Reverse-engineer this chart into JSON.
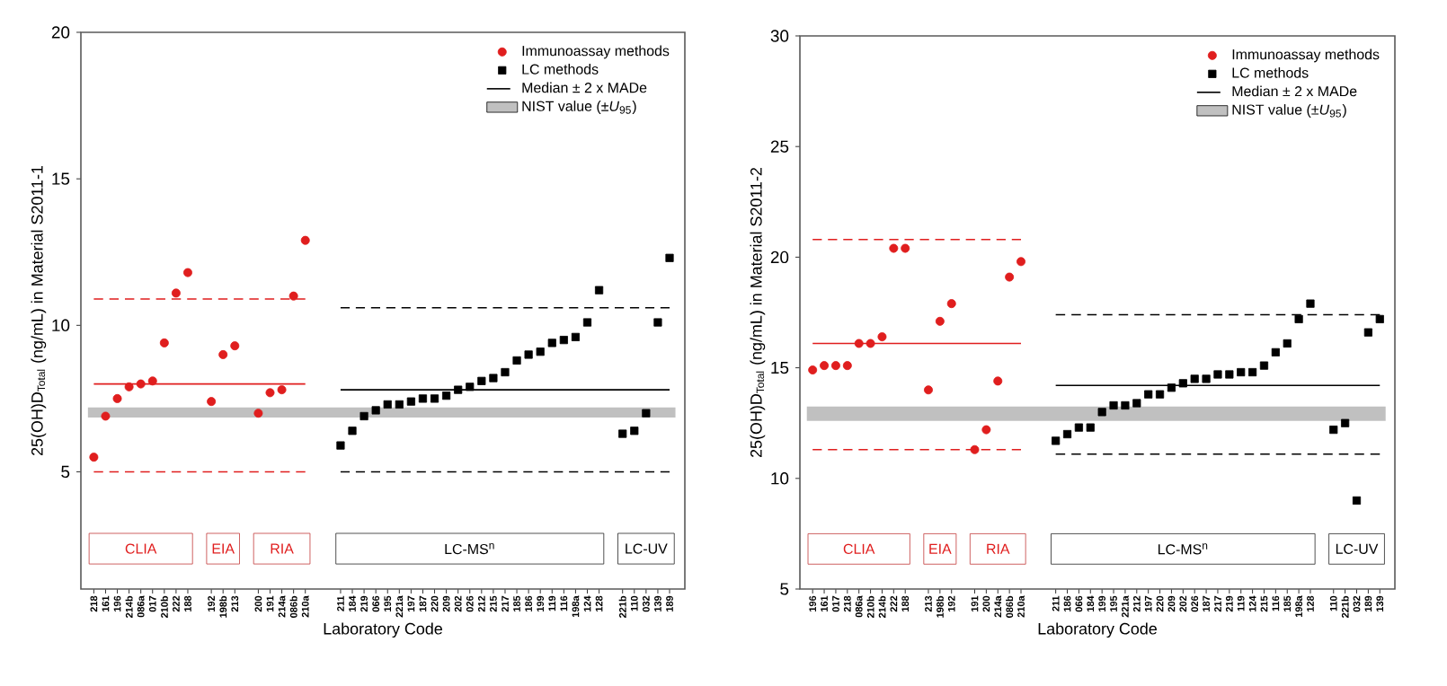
{
  "chart_data": [
    {
      "type": "scatter",
      "ylabel": "25(OH)D$_{Total}$ (ng/mL) in Material S2011-1",
      "xlabel": "Laboratory Code",
      "legend": "top right",
      "grid": false,
      "ylim": [
        1,
        20
      ],
      "yticks": [
        5,
        10,
        15,
        20
      ],
      "categories": [
        "218",
        "161",
        "196",
        "214b",
        "086a",
        "017",
        "210b",
        "222",
        "188",
        null,
        "192",
        "198b",
        "213",
        null,
        "200",
        "191",
        "214a",
        "086b",
        "210a",
        null,
        null,
        "211",
        "184",
        "219",
        "066",
        "195",
        "221a",
        "197",
        "187",
        "220",
        "209",
        "202",
        "026",
        "212",
        "215",
        "217",
        "185",
        "186",
        "199",
        "119",
        "116",
        "198a",
        "124",
        "128",
        null,
        "221b",
        "110",
        "032",
        "139",
        "189"
      ],
      "series": [
        {
          "name": "Immunoassay methods",
          "type": "scatter",
          "marker": "circle",
          "color": "#e01e1e",
          "values": [
            5.5,
            6.9,
            7.5,
            7.9,
            8.0,
            8.1,
            9.4,
            11.1,
            11.8,
            null,
            7.4,
            9.0,
            9.3,
            null,
            7.0,
            7.7,
            7.8,
            11.0,
            12.9,
            null,
            null,
            null,
            null,
            null,
            null,
            null,
            null,
            null,
            null,
            null,
            null,
            null,
            null,
            null,
            null,
            null,
            null,
            null,
            null,
            null,
            null,
            null,
            null,
            null,
            null,
            null,
            null,
            null,
            null,
            null
          ]
        },
        {
          "name": "LC methods",
          "type": "scatter",
          "marker": "square",
          "color": "#000000",
          "values": [
            null,
            null,
            null,
            null,
            null,
            null,
            null,
            null,
            null,
            null,
            null,
            null,
            null,
            null,
            null,
            null,
            null,
            null,
            null,
            null,
            null,
            5.9,
            6.4,
            6.9,
            7.1,
            7.3,
            7.3,
            7.4,
            7.5,
            7.5,
            7.6,
            7.8,
            7.9,
            8.1,
            8.2,
            8.4,
            8.8,
            9.0,
            9.1,
            9.4,
            9.5,
            9.6,
            10.1,
            11.2,
            null,
            6.3,
            6.4,
            7.0,
            10.1,
            12.3
          ]
        },
        {
          "type": "line",
          "line_style": "solid",
          "color": "#e01e1e",
          "values": [
            8.0,
            8.0,
            8.0,
            8.0,
            8.0,
            8.0,
            8.0,
            8.0,
            8.0,
            8.0,
            8.0,
            8.0,
            8.0,
            8.0,
            8.0,
            8.0,
            8.0,
            8.0,
            8.0,
            null,
            null,
            null,
            null,
            null,
            null,
            null,
            null,
            null,
            null,
            null,
            null,
            null,
            null,
            null,
            null,
            null,
            null,
            null,
            null,
            null,
            null,
            null,
            null,
            null,
            null,
            null,
            null,
            null,
            null,
            null
          ]
        },
        {
          "type": "line",
          "line_style": "dashed",
          "color": "#e01e1e",
          "values": [
            10.9,
            10.9,
            10.9,
            10.9,
            10.9,
            10.9,
            10.9,
            10.9,
            10.9,
            10.9,
            10.9,
            10.9,
            10.9,
            10.9,
            10.9,
            10.9,
            10.9,
            10.9,
            10.9,
            null,
            null,
            null,
            null,
            null,
            null,
            null,
            null,
            null,
            null,
            null,
            null,
            null,
            null,
            null,
            null,
            null,
            null,
            null,
            null,
            null,
            null,
            null,
            null,
            null,
            null,
            null,
            null,
            null,
            null,
            null
          ]
        },
        {
          "type": "line",
          "line_style": "dashed",
          "color": "#e01e1e",
          "values": [
            5.0,
            5.0,
            5.0,
            5.0,
            5.0,
            5.0,
            5.0,
            5.0,
            5.0,
            5.0,
            5.0,
            5.0,
            5.0,
            5.0,
            5.0,
            5.0,
            5.0,
            5.0,
            5.0,
            null,
            null,
            null,
            null,
            null,
            null,
            null,
            null,
            null,
            null,
            null,
            null,
            null,
            null,
            null,
            null,
            null,
            null,
            null,
            null,
            null,
            null,
            null,
            null,
            null,
            null,
            null,
            null,
            null,
            null,
            null
          ]
        },
        {
          "name": "Median ± 2 x MADe",
          "type": "line",
          "line_style": "solid",
          "color": "#000000",
          "values": [
            null,
            null,
            null,
            null,
            null,
            null,
            null,
            null,
            null,
            null,
            null,
            null,
            null,
            null,
            null,
            null,
            null,
            null,
            null,
            null,
            null,
            7.8,
            7.8,
            7.8,
            7.8,
            7.8,
            7.8,
            7.8,
            7.8,
            7.8,
            7.8,
            7.8,
            7.8,
            7.8,
            7.8,
            7.8,
            7.8,
            7.8,
            7.8,
            7.8,
            7.8,
            7.8,
            7.8,
            7.8,
            7.8,
            7.8,
            7.8,
            7.8,
            7.8,
            7.8
          ]
        },
        {
          "type": "line",
          "line_style": "dashed",
          "color": "#000000",
          "values": [
            null,
            null,
            null,
            null,
            null,
            null,
            null,
            null,
            null,
            null,
            null,
            null,
            null,
            null,
            null,
            null,
            null,
            null,
            null,
            null,
            null,
            10.6,
            10.6,
            10.6,
            10.6,
            10.6,
            10.6,
            10.6,
            10.6,
            10.6,
            10.6,
            10.6,
            10.6,
            10.6,
            10.6,
            10.6,
            10.6,
            10.6,
            10.6,
            10.6,
            10.6,
            10.6,
            10.6,
            10.6,
            10.6,
            10.6,
            10.6,
            10.6,
            10.6,
            10.6
          ]
        },
        {
          "type": "line",
          "line_style": "dashed",
          "color": "#000000",
          "values": [
            null,
            null,
            null,
            null,
            null,
            null,
            null,
            null,
            null,
            null,
            null,
            null,
            null,
            null,
            null,
            null,
            null,
            null,
            null,
            null,
            null,
            5.0,
            5.0,
            5.0,
            5.0,
            5.0,
            5.0,
            5.0,
            5.0,
            5.0,
            5.0,
            5.0,
            5.0,
            5.0,
            5.0,
            5.0,
            5.0,
            5.0,
            5.0,
            5.0,
            5.0,
            5.0,
            5.0,
            5.0,
            5.0,
            5.0,
            5.0,
            5.0,
            5.0,
            5.0
          ]
        }
      ],
      "bands": [
        {
          "axis": "y",
          "from": 6.85,
          "to": 7.2,
          "label": "NIST value (±*U*$_{95}$)",
          "color": "#c0c0c0"
        }
      ],
      "annotations": [
        "CLIA",
        "EIA",
        "RIA",
        "LC-MS$^{n}$",
        "LC-UV"
      ]
    },
    {
      "type": "scatter",
      "ylabel": "25(OH)D$_{Total}$ (ng/mL) in Material S2011-2",
      "xlabel": "Laboratory Code",
      "legend": "top right",
      "grid": false,
      "ylim": [
        5,
        30
      ],
      "yticks": [
        5,
        10,
        15,
        20,
        25,
        30
      ],
      "categories": [
        "196",
        "161",
        "017",
        "218",
        "086a",
        "210b",
        "214b",
        "222",
        "188",
        null,
        "213",
        "198b",
        "192",
        null,
        "191",
        "200",
        "214a",
        "086b",
        "210a",
        null,
        null,
        "211",
        "186",
        "066",
        "184",
        "199",
        "195",
        "221a",
        "212",
        "197",
        "220",
        "209",
        "202",
        "026",
        "187",
        "217",
        "219",
        "119",
        "124",
        "215",
        "116",
        "185",
        "198a",
        "128",
        null,
        "110",
        "221b",
        "032",
        "189",
        "139"
      ],
      "series": [
        {
          "name": "Immunoassay methods",
          "type": "scatter",
          "marker": "circle",
          "color": "#e01e1e",
          "values": [
            14.9,
            15.1,
            15.1,
            15.1,
            16.1,
            16.1,
            16.4,
            20.4,
            20.4,
            null,
            14.0,
            17.1,
            17.9,
            null,
            11.3,
            12.2,
            14.4,
            19.1,
            19.8,
            null,
            null,
            null,
            null,
            null,
            null,
            null,
            null,
            null,
            null,
            null,
            null,
            null,
            null,
            null,
            null,
            null,
            null,
            null,
            null,
            null,
            null,
            null,
            null,
            null,
            null,
            null,
            null,
            null,
            null,
            null
          ]
        },
        {
          "name": "LC methods",
          "type": "scatter",
          "marker": "square",
          "color": "#000000",
          "values": [
            null,
            null,
            null,
            null,
            null,
            null,
            null,
            null,
            null,
            null,
            null,
            null,
            null,
            null,
            null,
            null,
            null,
            null,
            null,
            null,
            null,
            11.7,
            12.0,
            12.3,
            12.3,
            13.0,
            13.3,
            13.3,
            13.4,
            13.8,
            13.8,
            14.1,
            14.3,
            14.5,
            14.5,
            14.7,
            14.7,
            14.8,
            14.8,
            15.1,
            15.7,
            16.1,
            17.2,
            17.9,
            null,
            12.2,
            12.5,
            9.0,
            16.6,
            17.2
          ]
        },
        {
          "type": "line",
          "line_style": "solid",
          "color": "#e01e1e",
          "values": [
            16.1,
            16.1,
            16.1,
            16.1,
            16.1,
            16.1,
            16.1,
            16.1,
            16.1,
            16.1,
            16.1,
            16.1,
            16.1,
            16.1,
            16.1,
            16.1,
            16.1,
            16.1,
            16.1,
            null,
            null,
            null,
            null,
            null,
            null,
            null,
            null,
            null,
            null,
            null,
            null,
            null,
            null,
            null,
            null,
            null,
            null,
            null,
            null,
            null,
            null,
            null,
            null,
            null,
            null,
            null,
            null,
            null,
            null,
            null
          ]
        },
        {
          "type": "line",
          "line_style": "dashed",
          "color": "#e01e1e",
          "values": [
            20.8,
            20.8,
            20.8,
            20.8,
            20.8,
            20.8,
            20.8,
            20.8,
            20.8,
            20.8,
            20.8,
            20.8,
            20.8,
            20.8,
            20.8,
            20.8,
            20.8,
            20.8,
            20.8,
            null,
            null,
            null,
            null,
            null,
            null,
            null,
            null,
            null,
            null,
            null,
            null,
            null,
            null,
            null,
            null,
            null,
            null,
            null,
            null,
            null,
            null,
            null,
            null,
            null,
            null,
            null,
            null,
            null,
            null,
            null
          ]
        },
        {
          "type": "line",
          "line_style": "dashed",
          "color": "#e01e1e",
          "values": [
            11.3,
            11.3,
            11.3,
            11.3,
            11.3,
            11.3,
            11.3,
            11.3,
            11.3,
            11.3,
            11.3,
            11.3,
            11.3,
            11.3,
            11.3,
            11.3,
            11.3,
            11.3,
            11.3,
            null,
            null,
            null,
            null,
            null,
            null,
            null,
            null,
            null,
            null,
            null,
            null,
            null,
            null,
            null,
            null,
            null,
            null,
            null,
            null,
            null,
            null,
            null,
            null,
            null,
            null,
            null,
            null,
            null,
            null,
            null
          ]
        },
        {
          "name": "Median ± 2 x MADe",
          "type": "line",
          "line_style": "solid",
          "color": "#000000",
          "values": [
            null,
            null,
            null,
            null,
            null,
            null,
            null,
            null,
            null,
            null,
            null,
            null,
            null,
            null,
            null,
            null,
            null,
            null,
            null,
            null,
            null,
            14.2,
            14.2,
            14.2,
            14.2,
            14.2,
            14.2,
            14.2,
            14.2,
            14.2,
            14.2,
            14.2,
            14.2,
            14.2,
            14.2,
            14.2,
            14.2,
            14.2,
            14.2,
            14.2,
            14.2,
            14.2,
            14.2,
            14.2,
            14.2,
            14.2,
            14.2,
            14.2,
            14.2,
            14.2
          ]
        },
        {
          "type": "line",
          "line_style": "dashed",
          "color": "#000000",
          "values": [
            null,
            null,
            null,
            null,
            null,
            null,
            null,
            null,
            null,
            null,
            null,
            null,
            null,
            null,
            null,
            null,
            null,
            null,
            null,
            null,
            null,
            17.4,
            17.4,
            17.4,
            17.4,
            17.4,
            17.4,
            17.4,
            17.4,
            17.4,
            17.4,
            17.4,
            17.4,
            17.4,
            17.4,
            17.4,
            17.4,
            17.4,
            17.4,
            17.4,
            17.4,
            17.4,
            17.4,
            17.4,
            17.4,
            17.4,
            17.4,
            17.4,
            17.4,
            17.4
          ]
        },
        {
          "type": "line",
          "line_style": "dashed",
          "color": "#000000",
          "values": [
            null,
            null,
            null,
            null,
            null,
            null,
            null,
            null,
            null,
            null,
            null,
            null,
            null,
            null,
            null,
            null,
            null,
            null,
            null,
            null,
            null,
            11.1,
            11.1,
            11.1,
            11.1,
            11.1,
            11.1,
            11.1,
            11.1,
            11.1,
            11.1,
            11.1,
            11.1,
            11.1,
            11.1,
            11.1,
            11.1,
            11.1,
            11.1,
            11.1,
            11.1,
            11.1,
            11.1,
            11.1,
            11.1,
            11.1,
            11.1,
            11.1,
            11.1,
            11.1
          ]
        }
      ],
      "bands": [
        {
          "axis": "y",
          "from": 12.6,
          "to": 13.25,
          "label": "NIST value (±*U*$_{95}$)",
          "color": "#c0c0c0"
        }
      ],
      "annotations": [
        "CLIA",
        "EIA",
        "RIA",
        "LC-MS$^{n}$",
        "LC-UV"
      ]
    }
  ]
}
